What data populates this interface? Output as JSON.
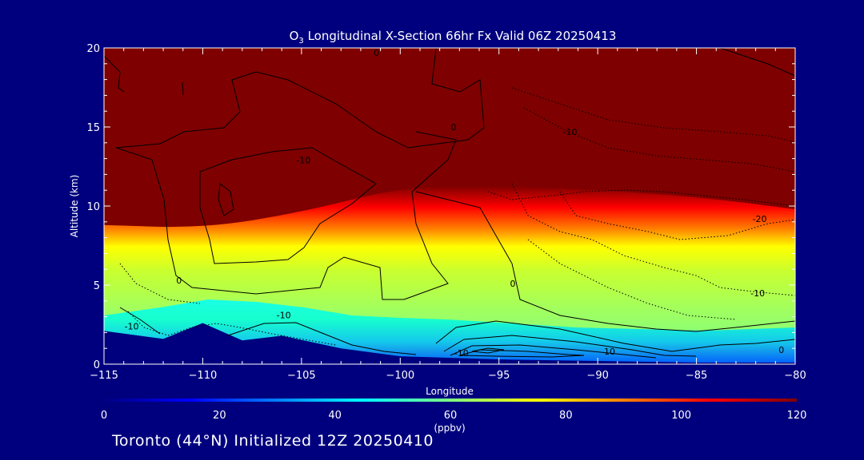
{
  "chart_data": {
    "type": "heatmap",
    "title": "O3 Longitudinal X-Section 66hr  Fx Valid 06Z 20250413",
    "title_species": "O",
    "title_subscript": "3",
    "title_rest": " Longitudinal X-Section 66hr  Fx Valid 06Z 20250413",
    "xlabel": "Longitude",
    "ylabel": "Altitude (km)",
    "xlim": [
      -115,
      -80
    ],
    "ylim": [
      0,
      20
    ],
    "x_ticks": [
      -115,
      -110,
      -105,
      -100,
      -95,
      -90,
      -85,
      -80
    ],
    "x_tick_labels": [
      "−115",
      "−110",
      "−105",
      "−100",
      "−95",
      "−90",
      "−85",
      "−80"
    ],
    "y_ticks": [
      0,
      5,
      10,
      15,
      20
    ],
    "y_tick_labels": [
      "0",
      "5",
      "10",
      "15",
      "20"
    ],
    "colorbar": {
      "range": [
        0,
        120
      ],
      "ticks": [
        0,
        20,
        40,
        60,
        80,
        100,
        120
      ],
      "tick_labels": [
        "0",
        "20",
        "40",
        "60",
        "80",
        "100",
        "120"
      ],
      "unit": "(ppbv)",
      "colors": [
        "#00007f",
        "#0000ff",
        "#0080ff",
        "#00ffff",
        "#80ff80",
        "#ffff00",
        "#ff8000",
        "#ff0000",
        "#7f0000"
      ]
    },
    "tropopause_altitude_km": [
      {
        "lon": -115,
        "alt": 8.8
      },
      {
        "lon": -110,
        "alt": 8.6
      },
      {
        "lon": -105,
        "alt": 9.6
      },
      {
        "lon": -100,
        "alt": 11.2
      },
      {
        "lon": -95,
        "alt": 11.3
      },
      {
        "lon": -90,
        "alt": 11.0
      },
      {
        "lon": -85,
        "alt": 10.6
      },
      {
        "lon": -80,
        "alt": 9.8
      }
    ],
    "terrain_altitude_km": [
      {
        "lon": -115,
        "alt": 2.1
      },
      {
        "lon": -112,
        "alt": 1.6
      },
      {
        "lon": -110,
        "alt": 2.6
      },
      {
        "lon": -108,
        "alt": 1.5
      },
      {
        "lon": -106,
        "alt": 1.8
      },
      {
        "lon": -103,
        "alt": 1.0
      },
      {
        "lon": -100,
        "alt": 0.5
      },
      {
        "lon": -95,
        "alt": 0.3
      },
      {
        "lon": -90,
        "alt": 0.2
      },
      {
        "lon": -85,
        "alt": 0.1
      },
      {
        "lon": -80,
        "alt": 0.1
      }
    ],
    "contour_labels": [
      {
        "text": "0",
        "lon": -101.2,
        "alt": 19.5
      },
      {
        "text": "0",
        "lon": -97.3,
        "alt": 14.8
      },
      {
        "text": "-10",
        "lon": -104.9,
        "alt": 12.7
      },
      {
        "text": "-10",
        "lon": -91.4,
        "alt": 14.5
      },
      {
        "text": "-20",
        "lon": -81.8,
        "alt": 9.0
      },
      {
        "text": "0",
        "lon": -111.2,
        "alt": 5.1
      },
      {
        "text": "-10",
        "lon": -113.6,
        "alt": 2.2
      },
      {
        "text": "-10",
        "lon": -105.9,
        "alt": 2.9
      },
      {
        "text": "0",
        "lon": -94.3,
        "alt": 4.9
      },
      {
        "text": "-10",
        "lon": -81.9,
        "alt": 4.3
      },
      {
        "text": "-10",
        "lon": -96.9,
        "alt": 0.5
      },
      {
        "text": "10",
        "lon": -89.4,
        "alt": 0.6
      },
      {
        "text": "0",
        "lon": -80.7,
        "alt": 0.7
      }
    ]
  },
  "footer": {
    "text": "Toronto (44°N) Initialized 12Z 20250410"
  }
}
